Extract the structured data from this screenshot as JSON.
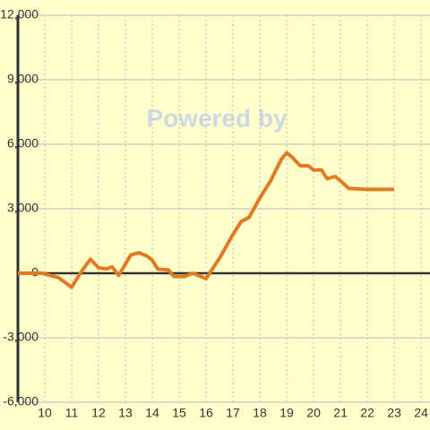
{
  "chart_data": {
    "type": "line",
    "watermark": "Powered by",
    "x": [
      9.0,
      9.9,
      10.5,
      11.0,
      11.4,
      11.7,
      12.0,
      12.3,
      12.5,
      12.75,
      13.2,
      13.5,
      13.8,
      14.0,
      14.2,
      14.6,
      14.8,
      15.2,
      15.5,
      15.7,
      16.0,
      16.5,
      17.0,
      17.3,
      17.6,
      18.0,
      18.4,
      18.8,
      19.0,
      19.2,
      19.5,
      19.8,
      20.0,
      20.3,
      20.5,
      20.8,
      21.0,
      21.3,
      22.0,
      23.0
    ],
    "series": [
      {
        "color": "#e07b22",
        "values": [
          0,
          0,
          -200,
          -650,
          150,
          650,
          250,
          200,
          300,
          -100,
          850,
          950,
          800,
          600,
          200,
          150,
          -150,
          -150,
          0,
          -100,
          -250,
          700,
          1800,
          2400,
          2600,
          3500,
          4300,
          5300,
          5600,
          5400,
          5000,
          5000,
          4800,
          4800,
          4400,
          4500,
          4300,
          3950,
          3900,
          3900
        ]
      }
    ],
    "xlim": [
      9,
      24.33
    ],
    "xticks": [
      10,
      11,
      12,
      13,
      14,
      15,
      16,
      17,
      18,
      19,
      20,
      21,
      22,
      23,
      24
    ],
    "ylim": [
      -6000,
      12000
    ],
    "yticks": [
      {
        "value": -6000,
        "label": "-6,000"
      },
      {
        "value": -3000,
        "label": "-3,000"
      },
      0,
      {
        "value": 3000,
        "label": "3,000"
      },
      {
        "value": 6000,
        "label": "6,000"
      },
      {
        "value": 9000,
        "label": "9,000"
      },
      {
        "value": 12000,
        "label": "12,000"
      }
    ],
    "grid": true
  }
}
